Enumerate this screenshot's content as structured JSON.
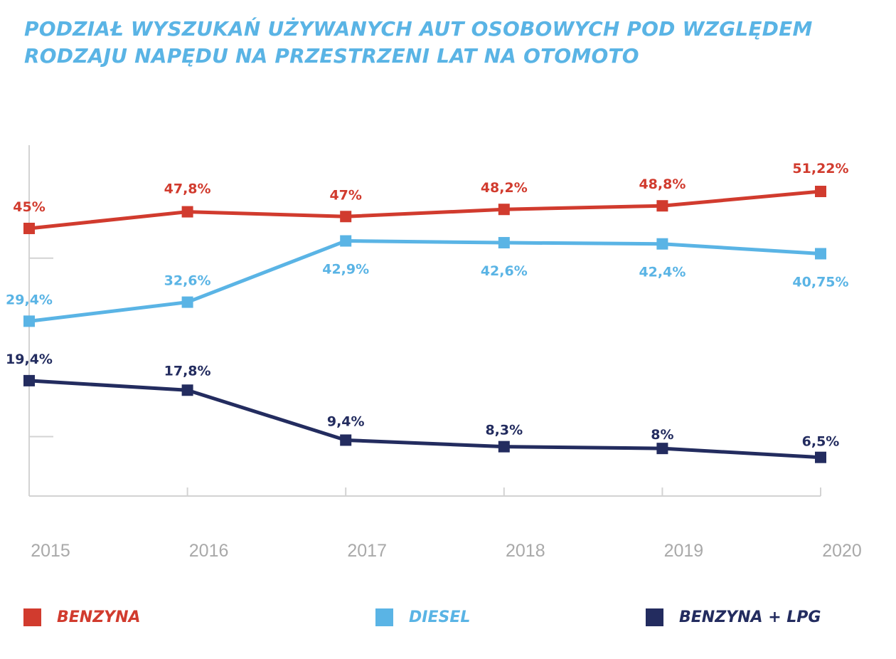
{
  "chart_data": {
    "type": "line",
    "title": "PODZIAŁ WYSZUKAŃ UŻYWANYCH AUT OSOBOWYCH POD WZGLĘDEM RODZAJU NAPĘDU NA PRZESTRZENI LAT NA OTOMOTO",
    "xlabel": "",
    "ylabel": "",
    "ylim": [
      0,
      60
    ],
    "grid": false,
    "legend_position": "bottom",
    "categories": [
      "2015",
      "2016",
      "2017",
      "2018",
      "2019",
      "2020"
    ],
    "series": [
      {
        "name": "BENZYNA",
        "color": "#D13B2E",
        "values": [
          45,
          47.8,
          47,
          48.2,
          48.8,
          51.22
        ],
        "labels": [
          "45%",
          "47,8%",
          "47%",
          "48,2%",
          "48,8%",
          "51,22%"
        ]
      },
      {
        "name": "DIESEL",
        "color": "#5AB4E5",
        "values": [
          29.4,
          32.6,
          42.9,
          42.6,
          42.4,
          40.75
        ],
        "labels": [
          "29,4%",
          "32,6%",
          "42,9%",
          "42,6%",
          "42,4%",
          "40,75%"
        ]
      },
      {
        "name": "BENZYNA + LPG",
        "color": "#232C5F",
        "values": [
          19.4,
          17.8,
          9.4,
          8.3,
          8,
          6.5
        ],
        "labels": [
          "19,4%",
          "17,8%",
          "9,4%",
          "8,3%",
          "8%",
          "6,5%"
        ]
      }
    ]
  },
  "colors": {
    "title": "#5AB4E5",
    "axis": "#D3D3D3",
    "tick_label": "#A9A9A9"
  }
}
